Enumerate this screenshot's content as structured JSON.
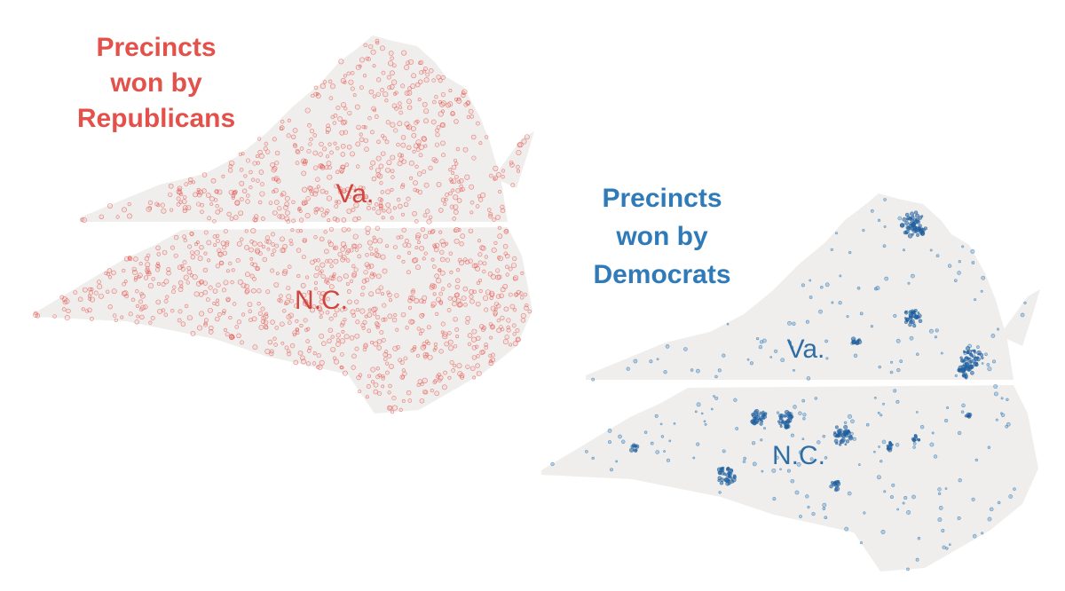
{
  "maps": [
    {
      "title_lines": [
        "Precincts",
        "won by",
        "Republicans"
      ],
      "labels": [
        "Va.",
        "N.C."
      ]
    },
    {
      "title_lines": [
        "Precincts",
        "won by",
        "Democrats"
      ],
      "labels": [
        "Va.",
        "N.C."
      ]
    }
  ]
}
